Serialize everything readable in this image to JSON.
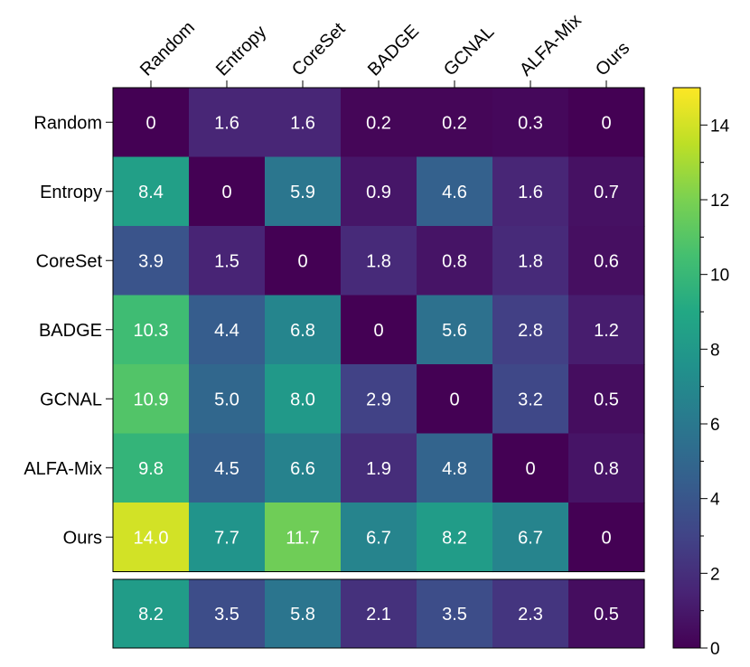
{
  "chart_data": {
    "type": "heatmap",
    "colormap": "viridis",
    "x_labels": [
      "Random",
      "Entropy",
      "CoreSet",
      "BADGE",
      "GCNAL",
      "ALFA-Mix",
      "Ours"
    ],
    "y_labels": [
      "Random",
      "Entropy",
      "CoreSet",
      "BADGE",
      "GCNAL",
      "ALFA-Mix",
      "Ours"
    ],
    "matrix": [
      [
        0,
        1.6,
        1.6,
        0.2,
        0.2,
        0.3,
        0
      ],
      [
        8.4,
        0,
        5.9,
        0.9,
        4.6,
        1.6,
        0.7
      ],
      [
        3.9,
        1.5,
        0,
        1.8,
        0.8,
        1.8,
        0.6
      ],
      [
        10.3,
        4.4,
        6.8,
        0,
        5.6,
        2.8,
        1.2
      ],
      [
        10.9,
        5.0,
        8.0,
        2.9,
        0,
        3.2,
        0.5
      ],
      [
        9.8,
        4.5,
        6.6,
        1.9,
        4.8,
        0,
        0.8
      ],
      [
        14.0,
        7.7,
        11.7,
        6.7,
        8.2,
        6.7,
        0
      ]
    ],
    "cell_text": [
      [
        "0",
        "1.6",
        "1.6",
        "0.2",
        "0.2",
        "0.3",
        "0"
      ],
      [
        "8.4",
        "0",
        "5.9",
        "0.9",
        "4.6",
        "1.6",
        "0.7"
      ],
      [
        "3.9",
        "1.5",
        "0",
        "1.8",
        "0.8",
        "1.8",
        "0.6"
      ],
      [
        "10.3",
        "4.4",
        "6.8",
        "0",
        "5.6",
        "2.8",
        "1.2"
      ],
      [
        "10.9",
        "5.0",
        "8.0",
        "2.9",
        "0",
        "3.2",
        "0.5"
      ],
      [
        "9.8",
        "4.5",
        "6.6",
        "1.9",
        "4.8",
        "0",
        "0.8"
      ],
      [
        "14.0",
        "7.7",
        "11.7",
        "6.7",
        "8.2",
        "6.7",
        "0"
      ]
    ],
    "summary_row": [
      8.2,
      3.5,
      5.8,
      2.1,
      3.5,
      2.3,
      0.5
    ],
    "summary_text": [
      "8.2",
      "3.5",
      "5.8",
      "2.1",
      "3.5",
      "2.3",
      "0.5"
    ],
    "colorbar": {
      "range": [
        0,
        15
      ],
      "ticks": [
        0,
        2,
        4,
        6,
        8,
        10,
        12,
        14
      ],
      "minor_ticks": [
        1,
        3,
        5,
        7,
        9,
        11,
        13
      ],
      "tick_labels": [
        "0",
        "2",
        "4",
        "6",
        "8",
        "10",
        "12",
        "14"
      ]
    },
    "grid": false,
    "legend": "colorbar-right"
  }
}
